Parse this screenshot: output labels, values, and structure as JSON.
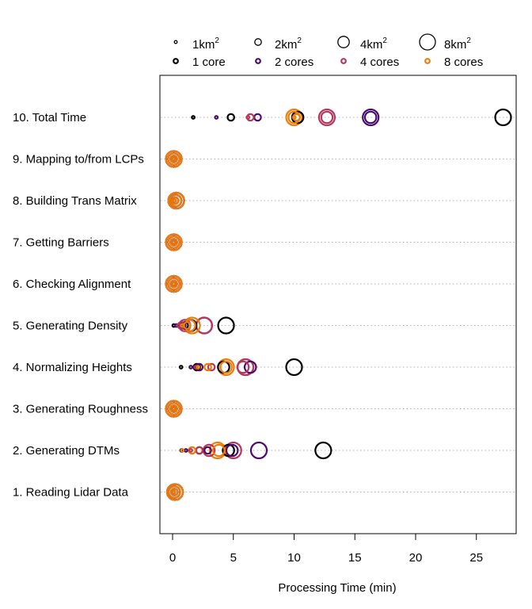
{
  "chart_data": {
    "type": "scatter",
    "xlabel": "Processing Time (min)",
    "xlim": [
      -1,
      28
    ],
    "xticks": [
      0,
      5,
      10,
      15,
      20,
      25
    ],
    "grid": "horizontal dotted",
    "legend_position": "top",
    "categories": [
      "1. Reading Lidar Data",
      "2. Generating DTMs",
      "3. Generating Roughness",
      "4. Normalizing Heights",
      "5. Generating Density",
      "6. Checking Alignment",
      "7. Getting Barriers",
      "8. Building Trans Matrix",
      "9. Mapping to/from LCPs",
      "10. Total Time"
    ],
    "area_legend": [
      {
        "key": "1",
        "label": "1km",
        "sup": "2"
      },
      {
        "key": "2",
        "label": "2km",
        "sup": "2"
      },
      {
        "key": "4",
        "label": "4km",
        "sup": "2"
      },
      {
        "key": "8",
        "label": "8km",
        "sup": "2"
      }
    ],
    "core_legend": [
      {
        "key": "1",
        "label": "1 core",
        "color": "#000000"
      },
      {
        "key": "2",
        "label": "2 cores",
        "color": "#4a0c6b"
      },
      {
        "key": "4",
        "label": "4 cores",
        "color": "#b5365b"
      },
      {
        "key": "8",
        "label": "8 cores",
        "color": "#ed7d0a"
      }
    ],
    "series": [
      {
        "cores": "1",
        "area": "1",
        "values": [
          0.1,
          0.75,
          0.1,
          0.7,
          0.1,
          0.1,
          0.1,
          0.15,
          0.1,
          1.7
        ]
      },
      {
        "cores": "1",
        "area": "2",
        "values": [
          0.15,
          2.2,
          0.1,
          2.0,
          1.0,
          0.1,
          0.1,
          0.2,
          0.1,
          4.8
        ]
      },
      {
        "cores": "1",
        "area": "4",
        "values": [
          0.15,
          4.6,
          0.1,
          4.2,
          1.5,
          0.1,
          0.1,
          0.25,
          0.1,
          10.3
        ]
      },
      {
        "cores": "1",
        "area": "8",
        "values": [
          0.2,
          12.4,
          0.1,
          10.0,
          4.4,
          0.1,
          0.1,
          0.3,
          0.1,
          27.2
        ]
      },
      {
        "cores": "2",
        "area": "1",
        "values": [
          0.1,
          1.1,
          0.1,
          1.5,
          0.3,
          0.1,
          0.1,
          0.15,
          0.1,
          3.6
        ]
      },
      {
        "cores": "2",
        "area": "2",
        "values": [
          0.15,
          2.9,
          0.1,
          2.2,
          0.8,
          0.1,
          0.1,
          0.2,
          0.1,
          7.0
        ]
      },
      {
        "cores": "2",
        "area": "4",
        "values": [
          0.15,
          4.9,
          0.1,
          6.4,
          1.4,
          0.1,
          0.1,
          0.25,
          0.1,
          16.3
        ]
      },
      {
        "cores": "2",
        "area": "8",
        "values": [
          0.2,
          7.1,
          0.1,
          6.0,
          2.6,
          0.1,
          0.1,
          0.3,
          0.1,
          16.3
        ]
      },
      {
        "cores": "4",
        "area": "1",
        "values": [
          0.1,
          1.5,
          0.1,
          1.9,
          0.5,
          0.1,
          0.1,
          0.15,
          0.1,
          6.2
        ]
      },
      {
        "cores": "4",
        "area": "2",
        "values": [
          0.15,
          2.2,
          0.1,
          3.2,
          0.7,
          0.1,
          0.1,
          0.2,
          0.1,
          6.4
        ]
      },
      {
        "cores": "4",
        "area": "4",
        "values": [
          0.15,
          3.0,
          0.1,
          5.8,
          1.0,
          0.1,
          0.1,
          0.25,
          0.1,
          12.7
        ]
      },
      {
        "cores": "4",
        "area": "8",
        "values": [
          0.2,
          5.0,
          0.1,
          6.0,
          2.6,
          0.1,
          0.1,
          0.3,
          0.1,
          12.7
        ]
      },
      {
        "cores": "8",
        "area": "1",
        "values": [
          0.1,
          0.8,
          0.1,
          2.1,
          0.8,
          0.1,
          0.1,
          0.15,
          0.1,
          10.0
        ]
      },
      {
        "cores": "8",
        "area": "2",
        "values": [
          0.15,
          1.6,
          0.1,
          2.9,
          1.2,
          0.1,
          0.1,
          0.2,
          0.1,
          10.2
        ]
      },
      {
        "cores": "8",
        "area": "4",
        "values": [
          0.15,
          3.8,
          0.1,
          4.4,
          1.4,
          0.1,
          0.1,
          0.25,
          0.1,
          10.0
        ]
      },
      {
        "cores": "8",
        "area": "8",
        "values": [
          0.2,
          3.7,
          0.1,
          4.4,
          1.6,
          0.1,
          0.1,
          0.3,
          0.1,
          10.0
        ]
      }
    ]
  }
}
